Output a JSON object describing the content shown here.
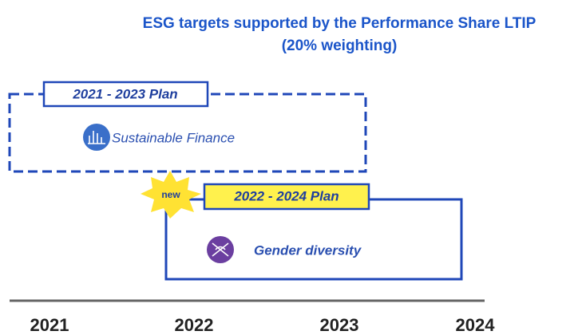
{
  "header": {
    "title_lines": [
      "ESG targets supported by the Performance Share LTIP",
      "(20% weighting)"
    ]
  },
  "plans": [
    {
      "label": "2021 - 2023 Plan",
      "item": "Sustainable Finance"
    },
    {
      "label": "2022 - 2024 Plan",
      "item": "Gender diversity",
      "badge": "new"
    }
  ],
  "timeline": {
    "years": [
      "2021",
      "2022",
      "2023",
      "2024"
    ]
  }
}
